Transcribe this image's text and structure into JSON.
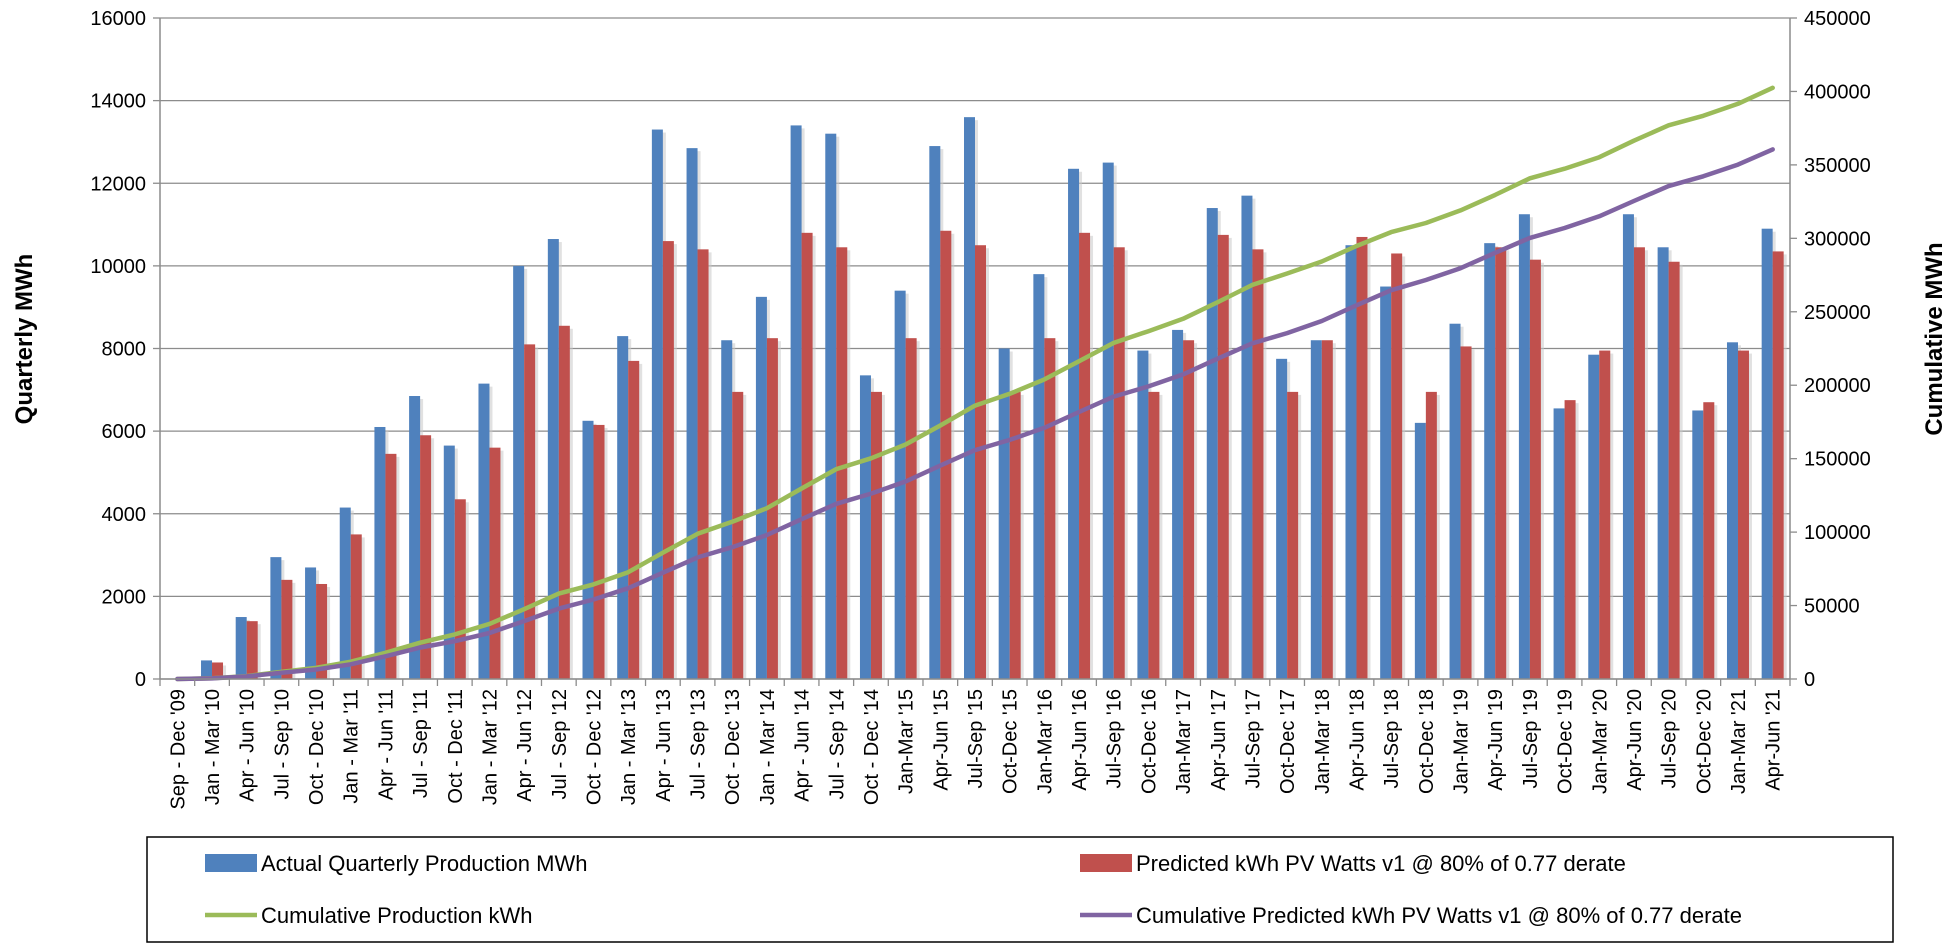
{
  "chart_data": {
    "type": "bar",
    "title": "",
    "ylabel": "Quarterly MWh",
    "y2label": "Cumulative MWh",
    "ylim": [
      0,
      16000
    ],
    "y2lim": [
      0,
      450000
    ],
    "yticks": [
      "0",
      "2000",
      "4000",
      "6000",
      "8000",
      "10000",
      "12000",
      "14000",
      "16000"
    ],
    "y2ticks": [
      "0",
      "50000",
      "100000",
      "150000",
      "200000",
      "250000",
      "300000",
      "350000",
      "400000",
      "450000"
    ],
    "grid": true,
    "legend_position": "bottom",
    "categories": [
      "Sep - Dec '09",
      "Jan - Mar '10",
      "Apr - Jun '10",
      "Jul - Sep '10",
      "Oct - Dec '10",
      "Jan - Mar '11",
      "Apr - Jun '11",
      "Jul - Sep '11",
      "Oct - Dec '11",
      "Jan - Mar '12",
      "Apr - Jun '12",
      "Jul - Sep '12",
      "Oct - Dec '12",
      "Jan - Mar '13",
      "Apr - Jun '13",
      "Jul - Sep '13",
      "Oct - Dec '13",
      "Jan - Mar '14",
      "Apr - Jun '14",
      "Jul - Sep '14",
      "Oct - Dec '14",
      "Jan-Mar '15",
      "Apr-Jun '15",
      "Jul-Sep '15",
      "Oct-Dec '15",
      "Jan-Mar '16",
      "Apr-Jun '16",
      "Jul-Sep '16",
      "Oct-Dec '16",
      "Jan-Mar '17",
      "Apr-Jun '17",
      "Jul-Sep '17",
      "Oct-Dec '17",
      "Jan-Mar '18",
      "Apr-Jun '18",
      "Jul-Sep '18",
      "Oct-Dec '18",
      "Jan-Mar '19",
      "Apr-Jun '19",
      "Jul-Sep '19",
      "Oct-Dec '19",
      "Jan-Mar '20",
      "Apr-Jun '20",
      "Jul-Sep '20",
      "Oct-Dec '20",
      "Jan-Mar '21",
      "Apr-Jun '21"
    ],
    "series": [
      {
        "name": "Actual Quarterly Production MWh",
        "kind": "bar",
        "axis": "left",
        "color": "#4F81BD",
        "values": [
          0,
          450,
          1500,
          2950,
          2700,
          4150,
          6100,
          6850,
          5650,
          7150,
          10000,
          10650,
          6250,
          8300,
          13300,
          12850,
          8200,
          9250,
          13400,
          13200,
          7350,
          9400,
          12900,
          13600,
          8000,
          9800,
          12350,
          12500,
          7950,
          8450,
          11400,
          11700,
          7750,
          8200,
          10500,
          9500,
          6200,
          8600,
          10550,
          11250,
          6550,
          7850,
          11250,
          10450,
          6500,
          8150,
          10900
        ]
      },
      {
        "name": "Predicted kWh PV Watts v1 @ 80% of 0.77 derate",
        "kind": "bar",
        "axis": "left",
        "color": "#C0504D",
        "values": [
          0,
          400,
          1400,
          2400,
          2300,
          3500,
          5450,
          5900,
          4350,
          5600,
          8100,
          8550,
          6150,
          7700,
          10600,
          10400,
          6950,
          8250,
          10800,
          10450,
          6950,
          8250,
          10850,
          10500,
          6950,
          8250,
          10800,
          10450,
          6950,
          8200,
          10750,
          10400,
          6950,
          8200,
          10700,
          10300,
          6950,
          8050,
          10450,
          10150,
          6750,
          7950,
          10450,
          10100,
          6700,
          7950,
          10350
        ]
      },
      {
        "name": "Cumulative Production kWh",
        "kind": "line",
        "axis": "right",
        "color": "#9BBB59",
        "values": [
          0,
          450,
          1950,
          4900,
          7600,
          11750,
          17850,
          24700,
          30350,
          37500,
          47500,
          58150,
          64400,
          72700,
          86000,
          98850,
          107050,
          116300,
          129700,
          142900,
          150250,
          159650,
          172550,
          186150,
          194150,
          203950,
          216300,
          228800,
          236750,
          245200,
          256600,
          268300,
          276050,
          284250,
          294750,
          304250,
          310450,
          319050,
          329600,
          340850,
          347400,
          355250,
          366500,
          376950,
          383450,
          391600,
          402500
        ]
      },
      {
        "name": "Cumulative Predicted kWh PV Watts v1 @ 80% of 0.77 derate",
        "kind": "line",
        "axis": "right",
        "color": "#8064A2",
        "values": [
          0,
          400,
          1800,
          4200,
          6500,
          10000,
          15450,
          21350,
          25700,
          31300,
          39400,
          47950,
          54100,
          61800,
          72400,
          82800,
          89750,
          98000,
          108800,
          119250,
          126200,
          134450,
          145300,
          155800,
          162750,
          171000,
          181800,
          192250,
          199200,
          207400,
          218150,
          228550,
          235500,
          243700,
          254400,
          264700,
          271650,
          279700,
          290150,
          300300,
          307050,
          315000,
          325450,
          335550,
          342250,
          350200,
          360550
        ]
      }
    ]
  }
}
